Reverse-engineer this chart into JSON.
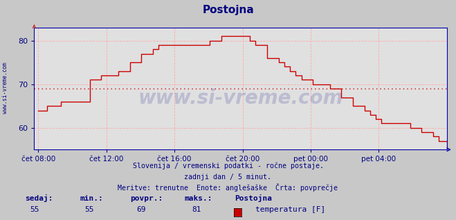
{
  "title": "Postojna",
  "title_color": "#000080",
  "title_fontsize": 11,
  "background_color": "#c8c8c8",
  "plot_bg_color": "#e0e0e0",
  "line_color": "#cc0000",
  "avg_line_color": "#cc0000",
  "avg_value": 69,
  "ylim": [
    55,
    83
  ],
  "yticks": [
    60,
    70,
    80
  ],
  "tick_label_color": "#000080",
  "grid_color": "#ffaaaa",
  "axis_spine_color": "#0000aa",
  "text1": "Slovenija / vremenski podatki - ročne postaje.",
  "text2": "zadnji dan / 5 minut.",
  "text3": "Meritve: trenutne  Enote: anglešaške  Črta: povprečje",
  "text_color": "#000080",
  "watermark": "www.si-vreme.com",
  "watermark_color": "#1a1a8e",
  "watermark_alpha": 0.18,
  "sidebar_text": "www.si-vreme.com",
  "sidebar_color": "#000080",
  "legend_label": "temperatura [F]",
  "legend_color": "#cc0000",
  "stats_sedaj": 55,
  "stats_min": 55,
  "stats_povpr": 69,
  "stats_maks": 81,
  "stats_color": "#000080",
  "xtick_labels": [
    "čet 08:00",
    "čet 12:00",
    "čet 16:00",
    "čet 20:00",
    "pet 00:00",
    "pet 04:00"
  ],
  "xtick_positions": [
    0.0,
    0.1667,
    0.3333,
    0.5,
    0.6667,
    0.8333
  ],
  "x_data": [
    0.0,
    0.014,
    0.021,
    0.028,
    0.056,
    0.063,
    0.07,
    0.084,
    0.098,
    0.112,
    0.126,
    0.14,
    0.154,
    0.168,
    0.182,
    0.196,
    0.21,
    0.224,
    0.238,
    0.252,
    0.266,
    0.28,
    0.294,
    0.308,
    0.322,
    0.336,
    0.35,
    0.364,
    0.378,
    0.392,
    0.406,
    0.42,
    0.434,
    0.448,
    0.462,
    0.476,
    0.49,
    0.504,
    0.518,
    0.532,
    0.546,
    0.56,
    0.574,
    0.588,
    0.602,
    0.616,
    0.63,
    0.644,
    0.658,
    0.672,
    0.686,
    0.7,
    0.714,
    0.728,
    0.742,
    0.756,
    0.77,
    0.784,
    0.798,
    0.812,
    0.826,
    0.84,
    0.854,
    0.868,
    0.882,
    0.896,
    0.91,
    0.924,
    0.938,
    0.952,
    0.966,
    0.98,
    1.0
  ],
  "y_data": [
    64,
    64,
    65,
    65,
    66,
    66,
    66,
    66,
    66,
    66,
    71,
    71,
    72,
    72,
    72,
    73,
    73,
    75,
    75,
    77,
    77,
    78,
    79,
    79,
    79,
    79,
    79,
    79,
    79,
    79,
    79,
    80,
    80,
    81,
    81,
    81,
    81,
    81,
    80,
    79,
    79,
    76,
    76,
    75,
    74,
    73,
    72,
    71,
    71,
    70,
    70,
    70,
    69,
    69,
    67,
    67,
    65,
    65,
    64,
    63,
    62,
    61,
    61,
    61,
    61,
    61,
    60,
    60,
    59,
    59,
    58,
    57,
    55
  ]
}
